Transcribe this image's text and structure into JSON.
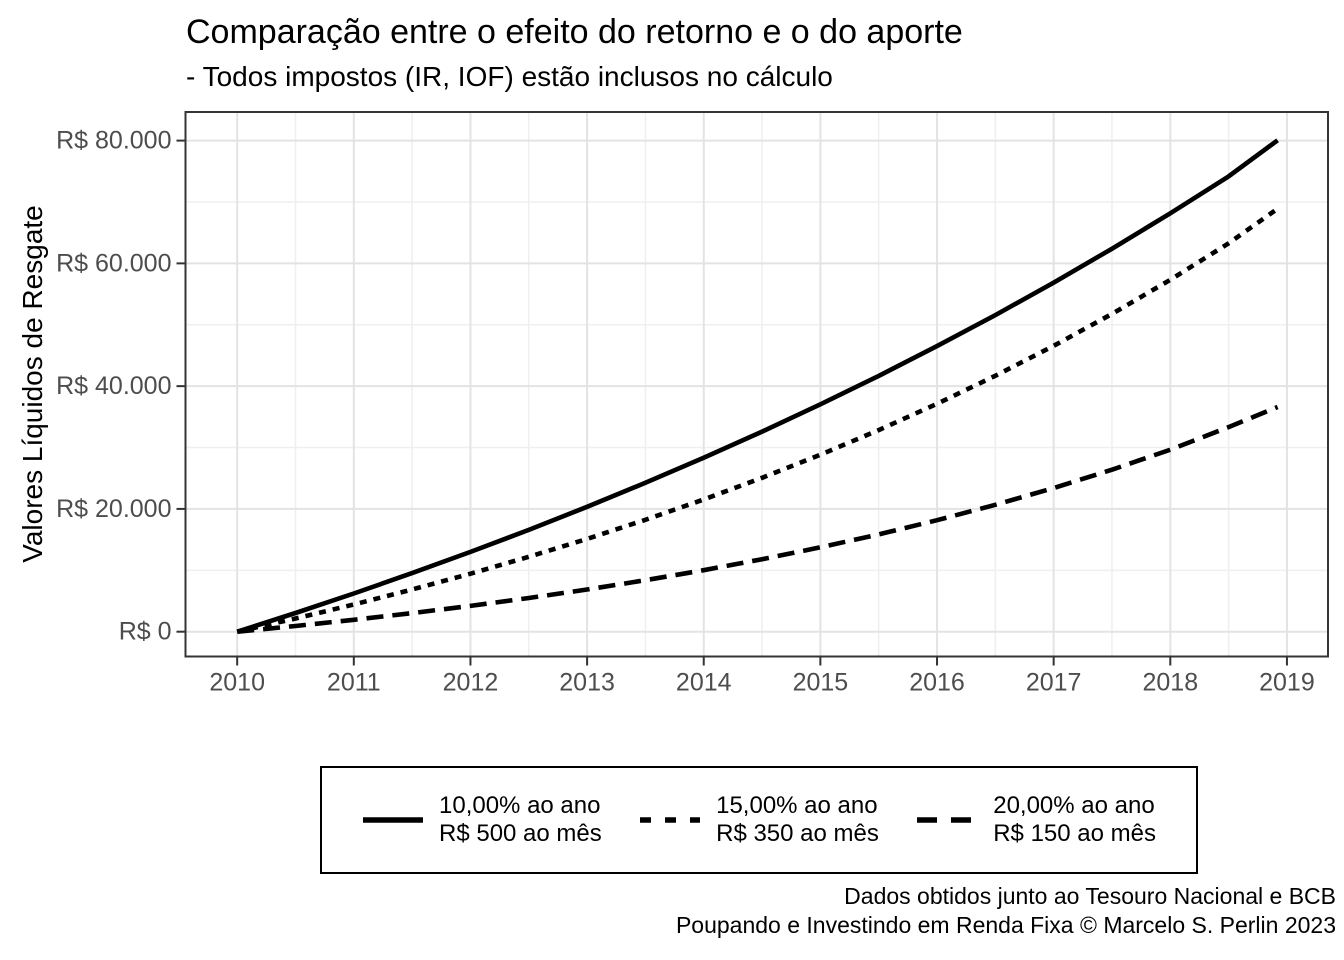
{
  "header": {
    "title": "Comparação entre o efeito do retorno e o do aporte",
    "subtitle": "- Todos impostos (IR, IOF) estão inclusos no cálculo"
  },
  "caption": {
    "line1": "Dados obtidos junto ao Tesouro Nacional e BCB",
    "line2": "Poupando e Investindo em Renda Fixa © Marcelo S. Perlin 2023"
  },
  "colors": {
    "series": "#000000",
    "panel_border": "#343434",
    "grid_major": "#e3e3e3",
    "grid_minor": "#efefef",
    "tick_mark": "#333333",
    "tick_label": "#4d4d4d"
  },
  "chart_data": {
    "type": "line",
    "title": "Comparação entre o efeito do retorno e o do aporte",
    "subtitle": "- Todos impostos (IR, IOF) estão inclusos no cálculo",
    "xlabel": "",
    "ylabel": "Valores Líquidos de Resgate",
    "grid": "major+minor",
    "legend_position": "bottom",
    "xlim": [
      2009.557,
      2019.352
    ],
    "ylim": [
      -4040,
      84660
    ],
    "x_ticks": [
      2010,
      2011,
      2012,
      2013,
      2014,
      2015,
      2016,
      2017,
      2018,
      2019
    ],
    "y_ticks": {
      "values": [
        0,
        20000,
        40000,
        60000,
        80000
      ],
      "labels": [
        "R$ 0",
        "R$ 20.000",
        "R$ 40.000",
        "R$ 60.000",
        "R$ 80.000"
      ]
    },
    "x": [
      2010,
      2010.5,
      2011,
      2011.5,
      2012,
      2012.5,
      2013,
      2013.5,
      2014,
      2014.5,
      2015,
      2015.5,
      2016,
      2016.5,
      2017,
      2017.5,
      2018,
      2018.5,
      2018.92
    ],
    "series": [
      {
        "name": "10,00% ao ano / R$ 500 ao mês",
        "legend_line1": "10,00% ao ano",
        "legend_line2": "R$ 500 ao mês",
        "linetype": "solid",
        "color": "#000000",
        "values": [
          0,
          3051,
          6230,
          9541,
          12993,
          16590,
          20342,
          24254,
          28335,
          32594,
          37039,
          41678,
          46523,
          51581,
          56864,
          62384,
          68150,
          74177,
          80050
        ]
      },
      {
        "name": "15,00% ao ano / R$ 350 ao mês",
        "legend_line1": "15,00% ao ano",
        "legend_line2": "R$ 350 ao mês",
        "linetype": "dotted",
        "color": "#000000",
        "values": [
          0,
          2153,
          4439,
          6868,
          9450,
          12196,
          15118,
          18228,
          21541,
          25071,
          28834,
          32845,
          37125,
          41692,
          46567,
          51771,
          57329,
          63267,
          68900
        ]
      },
      {
        "name": "20,00% ao ano / R$ 150 ao mês",
        "legend_line1": "20,00% ao ano",
        "legend_line2": "R$ 150 ao mês",
        "linetype": "dashed",
        "color": "#000000",
        "values": [
          0,
          930,
          1936,
          3025,
          4204,
          5484,
          6873,
          8382,
          10021,
          11804,
          13745,
          15858,
          18160,
          20668,
          23403,
          26387,
          29641,
          33329,
          36600
        ]
      }
    ]
  }
}
